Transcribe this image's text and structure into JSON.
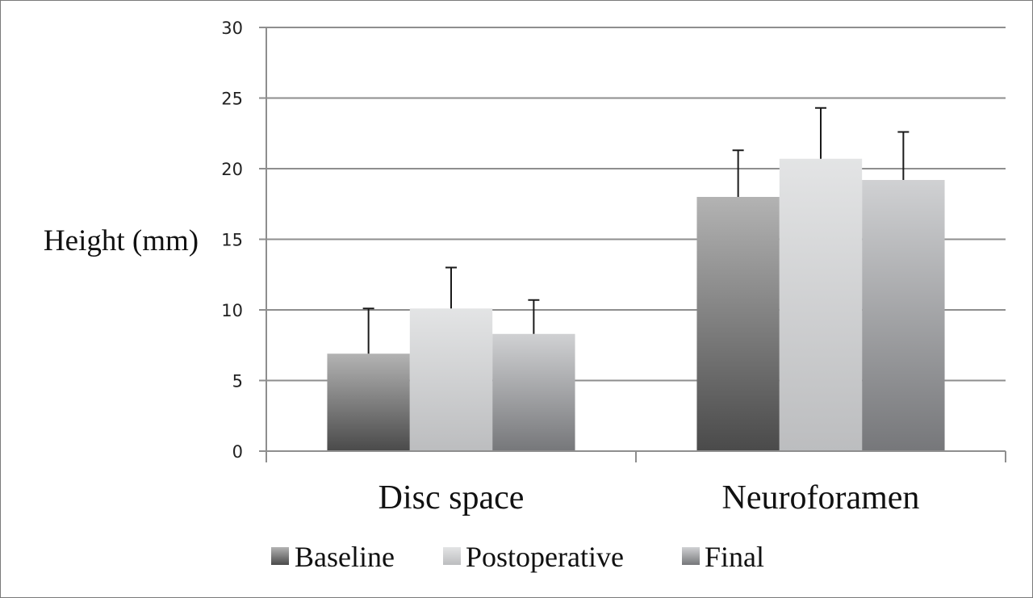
{
  "chart_data": {
    "type": "bar",
    "title": "",
    "ylabel": "Height (mm)",
    "xlabel": "",
    "ylim": [
      0,
      30
    ],
    "yticks": [
      0,
      5,
      10,
      15,
      20,
      25,
      30
    ],
    "categories": [
      "Disc space",
      "Neuroforamen"
    ],
    "series": [
      {
        "name": "Baseline",
        "values": [
          6.9,
          18.0
        ],
        "error": [
          3.2,
          3.3
        ],
        "color": "#5f5f5f"
      },
      {
        "name": "Postoperative",
        "values": [
          10.1,
          20.7
        ],
        "error": [
          2.9,
          3.6
        ],
        "color": "#c9cacc"
      },
      {
        "name": "Final",
        "values": [
          8.3,
          19.2
        ],
        "error": [
          2.4,
          3.4
        ],
        "color": "#8c8d90"
      }
    ],
    "grid": true,
    "legend_position": "bottom"
  }
}
